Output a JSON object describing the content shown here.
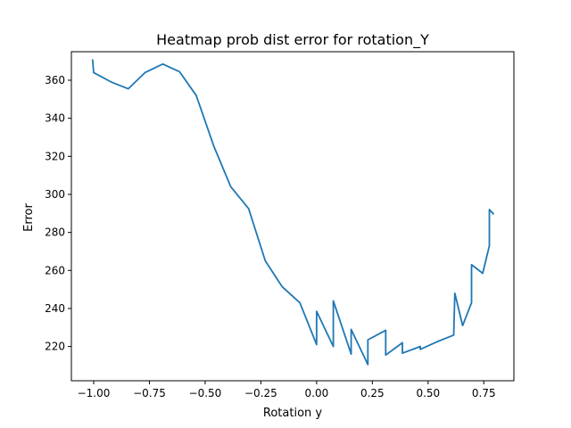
{
  "chart_data": {
    "type": "line",
    "title": "Heatmap prob dist error for rotation_Y",
    "xlabel": "Rotation y",
    "ylabel": "Error",
    "xlim": [
      -1.1,
      0.885
    ],
    "ylim": [
      202.0,
      375.0
    ],
    "xticks": [
      -1.0,
      -0.75,
      -0.5,
      -0.25,
      0.0,
      0.25,
      0.5,
      0.75
    ],
    "xtick_labels": [
      "−1.00",
      "−0.75",
      "−0.50",
      "−0.25",
      "0.00",
      "0.25",
      "0.50",
      "0.75"
    ],
    "yticks": [
      220,
      240,
      260,
      280,
      300,
      320,
      340,
      360
    ],
    "ytick_labels": [
      "220",
      "240",
      "260",
      "280",
      "300",
      "320",
      "340",
      "360"
    ],
    "grid": false,
    "series": [
      {
        "color": "#1f77b4",
        "x": [
          -1.005,
          -1.0,
          -0.92,
          -0.845,
          -0.77,
          -0.69,
          -0.615,
          -0.54,
          -0.46,
          -0.385,
          -0.305,
          -0.23,
          -0.155,
          -0.075,
          0.0,
          0.0,
          0.075,
          0.075,
          0.155,
          0.155,
          0.23,
          0.23,
          0.31,
          0.31,
          0.385,
          0.385,
          0.465,
          0.465,
          0.54,
          0.54,
          0.615,
          0.62,
          0.655,
          0.695,
          0.695,
          0.745,
          0.775,
          0.775,
          0.795
        ],
        "y": [
          371,
          364,
          359,
          355.5,
          364,
          368.5,
          364.5,
          352,
          325,
          304,
          292.5,
          265,
          251.5,
          243,
          221,
          238.5,
          220,
          244,
          216,
          229,
          210.5,
          223.5,
          228.5,
          215.5,
          222,
          216.5,
          220,
          218.5,
          222.5,
          222.5,
          226,
          248,
          231,
          243,
          263,
          258.5,
          273,
          292,
          289.5
        ]
      }
    ]
  }
}
